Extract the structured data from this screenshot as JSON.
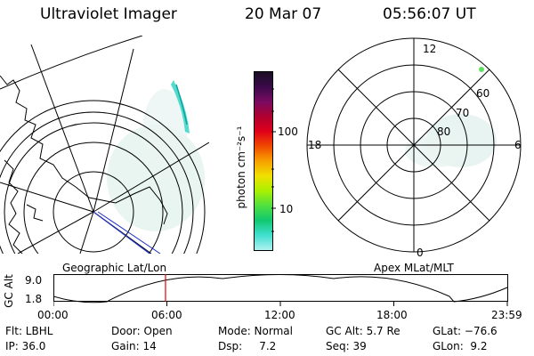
{
  "header": {
    "title": "Ultraviolet Imager",
    "date": "20 Mar 07",
    "time": "05:56:07 UT"
  },
  "geo_panel": {
    "caption": "Geographic Lat/Lon"
  },
  "apex_panel": {
    "caption": "Apex MLat/MLT",
    "mlt_top": "12",
    "mlt_left": "18",
    "mlt_right": "6",
    "mlt_bottom": "0",
    "lat_labels": [
      "60",
      "70",
      "80"
    ]
  },
  "colorbar": {
    "unit_label": "photon cm⁻²s⁻¹",
    "tick_100": "100",
    "tick_10": "10",
    "colors": [
      "#1b0d24",
      "#3b0a4a",
      "#7a0a60",
      "#b00030",
      "#e0001a",
      "#f04a00",
      "#f7a000",
      "#f0e000",
      "#aaf000",
      "#50e040",
      "#10c870",
      "#40e0d0",
      "#b0f0f0"
    ]
  },
  "altitude_plot": {
    "axis_label": "GC Alt",
    "y_max": "9.0",
    "y_min": "1.8",
    "x_ticks": [
      "00:00",
      "06:00",
      "12:00",
      "18:00",
      "23:59"
    ],
    "current_time_fraction": 0.247
  },
  "info": {
    "flt": "Flt: LBHL",
    "door": "Door: Open",
    "mode": "Mode: Normal",
    "gc_alt": "GC Alt: 5.7 Re",
    "glat": "GLat: −76.6",
    "ip": "IP: 36.0",
    "gain": "Gain: 14",
    "dsp": "Dsp:     7.2",
    "seq": "Seq: 39",
    "glon": "GLon:  9.2"
  },
  "colors": {
    "marker": "#e00000",
    "track": "#2030c0"
  }
}
